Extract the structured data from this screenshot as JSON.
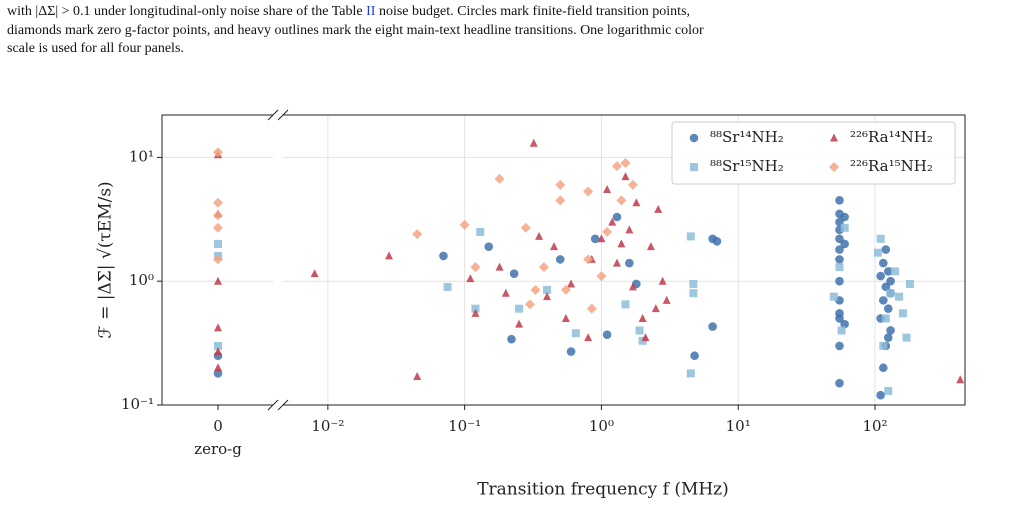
{
  "caption": [
    [
      "with |ΔΣ| > 0.1 under longitudinal-only noise share of the Table ",
      "II",
      " noise budget. Circles mark finite-field transition points,"
    ],
    [
      "diamonds mark zero g-factor points, and heavy outlines mark the eight main-text headline transitions. One logarithmic color"
    ],
    [
      "scale is used for all four panels."
    ]
  ],
  "chart_data": {
    "type": "scatter",
    "xlabel": "Transition frequency f (MHz)",
    "ylabel": "ℱ = |ΔΣ| √(τEM/s)",
    "log_x": true,
    "log_y": true,
    "grid": true,
    "legend": "upper right",
    "xlim": [
      0.0047,
      455
    ],
    "ylim": [
      0.1,
      22
    ],
    "xticks": [
      {
        "value": 0.01,
        "label": "10⁻²"
      },
      {
        "value": 0.1,
        "label": "10⁻¹"
      },
      {
        "value": 1,
        "label": "10⁰"
      },
      {
        "value": 10,
        "label": "10¹"
      },
      {
        "value": 100,
        "label": "10²"
      }
    ],
    "yticks": [
      {
        "value": 0.1,
        "label": "10⁻¹"
      },
      {
        "value": 1,
        "label": "10⁰"
      },
      {
        "value": 10,
        "label": "10¹"
      }
    ],
    "zero_g_tick": 0,
    "zero_g_label": "zero-g",
    "series": [
      {
        "name": "⁸⁸Sr¹⁴NH₂",
        "color": "#3f72ad",
        "marker": "circle",
        "x": [
          0.07,
          0.15,
          0.23,
          0.22,
          0.6,
          1.1,
          1.6,
          0.5,
          0.9,
          6.5,
          7,
          4.8,
          6.5,
          1.3,
          1.8,
          55,
          55,
          55,
          55,
          55,
          55,
          55,
          55,
          55,
          55,
          55,
          55,
          55,
          60,
          60,
          60,
          110,
          110,
          110,
          115,
          115,
          115,
          120,
          120,
          120,
          125,
          125,
          125,
          130,
          130,
          130
        ],
        "values": [
          1.6,
          1.9,
          1.15,
          0.34,
          0.27,
          0.37,
          1.4,
          1.5,
          2.2,
          2.2,
          2.1,
          0.25,
          0.43,
          3.3,
          0.95,
          0.15,
          0.3,
          0.5,
          0.7,
          1.0,
          1.5,
          2.2,
          3,
          3.5,
          4.5,
          0.55,
          1.8,
          2.6,
          3.3,
          2.0,
          0.45,
          0.12,
          0.5,
          1.1,
          0.2,
          0.7,
          1.4,
          0.3,
          0.9,
          1.8,
          0.35,
          0.6,
          1.2,
          0.8,
          1.0,
          0.4
        ],
        "zero_g": [
          0.25,
          0.18
        ]
      },
      {
        "name": "⁸⁸Sr¹⁵NH₂",
        "color": "#8cbcd9",
        "marker": "square",
        "x": [
          0.075,
          0.12,
          0.13,
          0.25,
          0.4,
          0.65,
          1.5,
          1.9,
          2.0,
          4.5,
          4.5,
          4.7,
          4.7,
          50,
          55,
          60,
          57,
          110,
          115,
          120,
          130,
          140,
          150,
          160,
          170,
          180,
          105,
          125
        ],
        "values": [
          0.9,
          0.6,
          2.5,
          0.6,
          0.85,
          0.38,
          0.65,
          0.4,
          0.33,
          0.18,
          2.3,
          0.95,
          0.8,
          0.75,
          1.3,
          2.7,
          0.4,
          2.2,
          0.3,
          0.5,
          0.8,
          1.2,
          0.75,
          0.55,
          0.35,
          0.95,
          1.7,
          0.13
        ],
        "zero_g": [
          2.0,
          1.6,
          0.3
        ]
      },
      {
        "name": "²²⁶Ra¹⁴NH₂",
        "color": "#c0394a",
        "marker": "triangle",
        "x": [
          0.008,
          0.028,
          0.045,
          0.11,
          0.12,
          0.18,
          0.2,
          0.25,
          0.32,
          0.35,
          0.4,
          0.45,
          0.55,
          0.6,
          0.8,
          1.0,
          1.1,
          1.2,
          1.3,
          1.5,
          1.6,
          1.7,
          1.8,
          2.0,
          2.1,
          2.3,
          2.5,
          2.6,
          2.8,
          3.0,
          1.4,
          0.85,
          420
        ],
        "values": [
          1.15,
          1.6,
          0.17,
          1.05,
          0.55,
          1.3,
          0.8,
          0.45,
          13,
          2.3,
          0.75,
          1.9,
          0.5,
          0.95,
          0.35,
          2.2,
          5.5,
          3.0,
          1.4,
          7,
          2.6,
          0.9,
          4.3,
          0.5,
          0.35,
          1.9,
          0.6,
          3.8,
          1.0,
          0.7,
          2.0,
          1.5,
          0.16
        ],
        "zero_g": [
          10.5,
          3.5,
          1.0,
          0.42,
          0.27,
          0.2
        ]
      },
      {
        "name": "²²⁶Ra¹⁵NH₂",
        "color": "#f4a582",
        "marker": "diamond",
        "x": [
          0.045,
          0.1,
          0.12,
          0.18,
          0.28,
          0.33,
          0.38,
          0.5,
          0.5,
          0.55,
          0.8,
          0.8,
          0.85,
          1.0,
          1.3,
          1.5,
          1.4,
          1.7,
          1.1,
          0.3
        ],
        "values": [
          2.4,
          2.85,
          1.3,
          6.7,
          2.7,
          0.85,
          1.3,
          6.0,
          4.5,
          0.85,
          5.3,
          1.5,
          0.6,
          1.1,
          8.5,
          9.0,
          4.5,
          6.0,
          2.5,
          0.65
        ],
        "zero_g": [
          11,
          4.3,
          3.4,
          2.7,
          1.5
        ]
      }
    ]
  }
}
